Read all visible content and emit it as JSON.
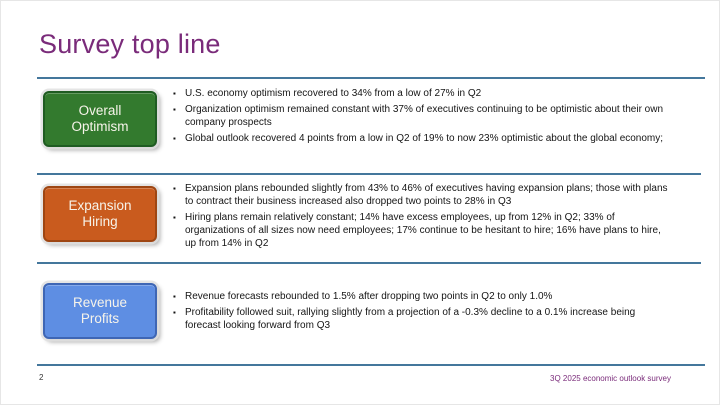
{
  "slide": {
    "title": "Survey top line",
    "page_number": "2",
    "footer_note": "3Q 2025 economic outlook survey"
  },
  "icons": {
    "bullet_glyph": "▪"
  },
  "colors": {
    "title_text": "#7a2b7a",
    "divider": "#44779c",
    "footer_note_text": "#7a2b7a",
    "body_text": "#151515",
    "box_label_text": "#f7f4ea"
  },
  "sections": [
    {
      "label_lines": [
        "Overall",
        "Optimism"
      ],
      "box_fill": "#337a2e",
      "box_border": "#1f5c22",
      "bullets": [
        "U.S. economy optimism recovered to 34% from a low of 27% in Q2",
        "Organization optimism remained constant with 37% of executives continuing to be optimistic about their own company prospects",
        "Global outlook recovered 4 points from a low in Q2 of 19% to now 23% optimistic about the global economy;"
      ]
    },
    {
      "label_lines": [
        "Expansion",
        "Hiring"
      ],
      "box_fill": "#c95b1e",
      "box_border": "#9e4613",
      "bullets": [
        "Expansion plans rebounded slightly from 43% to 46% of executives having expansion plans; those with plans to contract their business increased also dropped two points to 28% in Q3",
        "Hiring plans remain relatively constant; 14% have excess employees, up from 12% in Q2; 33% of organizations of all sizes now need employees; 17% continue to be hesitant to hire; 16% have plans to hire, up from 14% in Q2"
      ]
    },
    {
      "label_lines": [
        "Revenue",
        "Profits"
      ],
      "box_fill": "#5e8ee3",
      "box_border": "#3e66b5",
      "bullets": [
        "Revenue forecasts rebounded to 1.5% after dropping two points in Q2 to only 1.0%",
        "Profitability followed suit, rallying slightly from a projection of a -0.3% decline to a 0.1% increase being forecast looking forward from Q3"
      ]
    }
  ]
}
